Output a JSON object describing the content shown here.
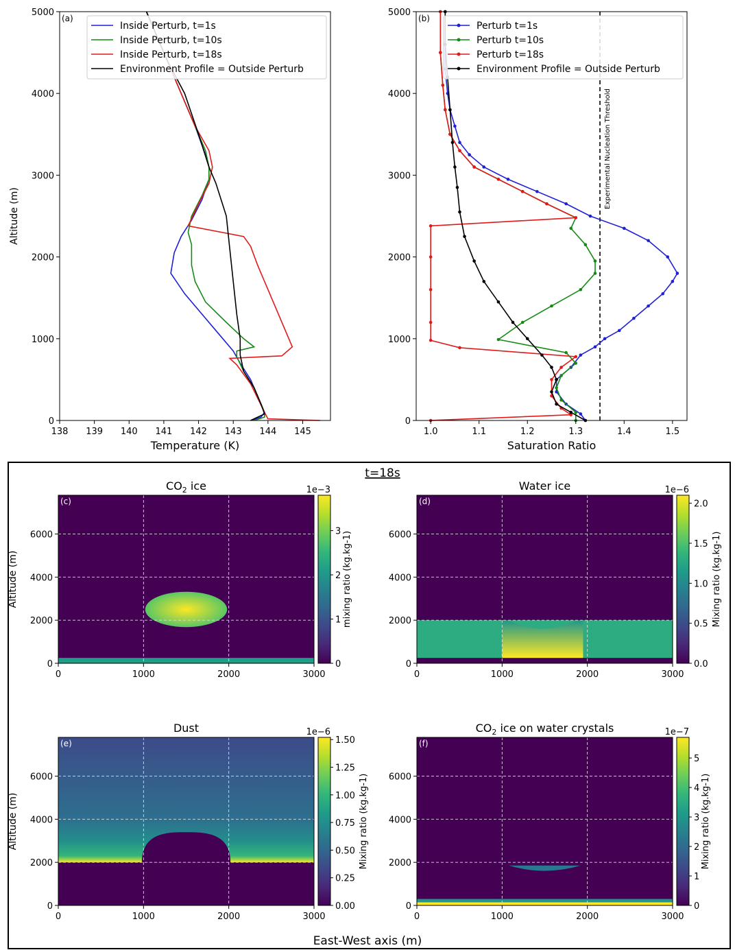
{
  "chart_data": [
    {
      "id": "a",
      "type": "line",
      "panel_label": "(a)",
      "xlabel": "Temperature (K)",
      "ylabel": "Altitude (m)",
      "xlim": [
        138,
        145.8
      ],
      "ylim": [
        0,
        5000
      ],
      "xticks": [
        "138",
        "139",
        "140",
        "141",
        "142",
        "143",
        "144",
        "145"
      ],
      "yticks": [
        "0",
        "1000",
        "2000",
        "3000",
        "4000",
        "5000"
      ],
      "legend": "top-right",
      "series": [
        {
          "name": "Inside Perturb, t=1s",
          "color": "#1f1fd6",
          "points": [
            [
              143.5,
              0
            ],
            [
              143.8,
              40
            ],
            [
              143.9,
              100
            ],
            [
              143.7,
              300
            ],
            [
              143.5,
              500
            ],
            [
              143.2,
              700
            ],
            [
              143.0,
              850
            ],
            [
              142.6,
              1050
            ],
            [
              142.1,
              1300
            ],
            [
              141.6,
              1550
            ],
            [
              141.2,
              1800
            ],
            [
              141.3,
              2050
            ],
            [
              141.5,
              2250
            ],
            [
              141.8,
              2450
            ],
            [
              142.1,
              2700
            ],
            [
              142.3,
              2950
            ],
            [
              142.3,
              3100
            ],
            [
              142.2,
              3250
            ],
            [
              141.9,
              3600
            ],
            [
              141.5,
              4000
            ],
            [
              141.1,
              4400
            ],
            [
              140.7,
              4800
            ],
            [
              140.5,
              5000
            ]
          ]
        },
        {
          "name": "Inside Perturb, t=10s",
          "color": "#148a14",
          "points": [
            [
              143.6,
              0
            ],
            [
              143.9,
              40
            ],
            [
              143.9,
              100
            ],
            [
              143.6,
              400
            ],
            [
              143.3,
              600
            ],
            [
              143.1,
              780
            ],
            [
              143.1,
              850
            ],
            [
              143.6,
              900
            ],
            [
              143.3,
              1000
            ],
            [
              142.8,
              1200
            ],
            [
              142.2,
              1450
            ],
            [
              141.9,
              1700
            ],
            [
              141.8,
              1900
            ],
            [
              141.8,
              2150
            ],
            [
              141.7,
              2300
            ],
            [
              141.8,
              2500
            ],
            [
              142.1,
              2750
            ],
            [
              142.3,
              2950
            ],
            [
              142.3,
              3100
            ],
            [
              142.2,
              3300
            ],
            [
              141.9,
              3600
            ],
            [
              141.5,
              4000
            ],
            [
              141.1,
              4400
            ],
            [
              140.7,
              4800
            ],
            [
              140.5,
              5000
            ]
          ]
        },
        {
          "name": "Inside Perturb, t=18s",
          "color": "#e01a1a",
          "points": [
            [
              145.5,
              0
            ],
            [
              144.0,
              20
            ],
            [
              143.9,
              100
            ],
            [
              143.5,
              450
            ],
            [
              143.1,
              680
            ],
            [
              142.9,
              760
            ],
            [
              144.4,
              790
            ],
            [
              144.7,
              900
            ],
            [
              144.2,
              1400
            ],
            [
              143.7,
              1900
            ],
            [
              143.5,
              2130
            ],
            [
              143.3,
              2250
            ],
            [
              141.7,
              2380
            ],
            [
              142.0,
              2650
            ],
            [
              142.3,
              2900
            ],
            [
              142.4,
              3100
            ],
            [
              142.3,
              3300
            ],
            [
              141.9,
              3600
            ],
            [
              141.5,
              4000
            ],
            [
              141.1,
              4400
            ],
            [
              140.7,
              4800
            ],
            [
              140.5,
              5000
            ]
          ]
        },
        {
          "name": "Environment Profile = Outside Perturb",
          "color": "#000000",
          "points": [
            [
              143.5,
              0
            ],
            [
              143.9,
              80
            ],
            [
              143.8,
              200
            ],
            [
              143.6,
              400
            ],
            [
              143.3,
              600
            ],
            [
              143.2,
              800
            ],
            [
              143.2,
              1000
            ],
            [
              143.1,
              1300
            ],
            [
              143.0,
              1700
            ],
            [
              142.9,
              2100
            ],
            [
              142.8,
              2500
            ],
            [
              142.5,
              2900
            ],
            [
              142.3,
              3100
            ],
            [
              142.0,
              3500
            ],
            [
              141.6,
              4000
            ],
            [
              141.1,
              4400
            ],
            [
              140.7,
              4800
            ],
            [
              140.5,
              5000
            ]
          ]
        }
      ]
    },
    {
      "id": "b",
      "type": "line",
      "panel_label": "(b)",
      "xlabel": "Saturation Ratio",
      "ylabel": "",
      "xlim": [
        0.97,
        1.53
      ],
      "ylim": [
        0,
        5000
      ],
      "xticks": [
        "1.0",
        "1.1",
        "1.2",
        "1.3",
        "1.4",
        "1.5"
      ],
      "yticks": [
        "0",
        "1000",
        "2000",
        "3000",
        "4000",
        "5000"
      ],
      "legend": "top-right",
      "threshold": {
        "x": 1.35,
        "label": "Experimental Nucleation Threshold"
      },
      "series": [
        {
          "name": "Perturb t=1s",
          "color": "#1f1fd6",
          "points": [
            [
              1.32,
              0
            ],
            [
              1.31,
              80
            ],
            [
              1.28,
              200
            ],
            [
              1.26,
              350
            ],
            [
              1.26,
              500
            ],
            [
              1.29,
              650
            ],
            [
              1.31,
              800
            ],
            [
              1.34,
              900
            ],
            [
              1.36,
              1000
            ],
            [
              1.39,
              1100
            ],
            [
              1.42,
              1250
            ],
            [
              1.45,
              1400
            ],
            [
              1.48,
              1550
            ],
            [
              1.5,
              1700
            ],
            [
              1.51,
              1800
            ],
            [
              1.49,
              2000
            ],
            [
              1.45,
              2200
            ],
            [
              1.4,
              2350
            ],
            [
              1.33,
              2500
            ],
            [
              1.28,
              2650
            ],
            [
              1.22,
              2800
            ],
            [
              1.16,
              2950
            ],
            [
              1.11,
              3100
            ],
            [
              1.08,
              3250
            ],
            [
              1.06,
              3400
            ],
            [
              1.05,
              3600
            ],
            [
              1.04,
              3800
            ],
            [
              1.035,
              4000
            ],
            [
              1.03,
              4300
            ],
            [
              1.03,
              4600
            ],
            [
              1.03,
              5000
            ]
          ]
        },
        {
          "name": "Perturb t=10s",
          "color": "#148a14",
          "points": [
            [
              1.3,
              0
            ],
            [
              1.3,
              100
            ],
            [
              1.27,
              250
            ],
            [
              1.26,
              400
            ],
            [
              1.27,
              550
            ],
            [
              1.3,
              700
            ],
            [
              1.28,
              830
            ],
            [
              1.14,
              990
            ],
            [
              1.19,
              1200
            ],
            [
              1.25,
              1400
            ],
            [
              1.31,
              1600
            ],
            [
              1.34,
              1800
            ],
            [
              1.34,
              1950
            ],
            [
              1.32,
              2150
            ],
            [
              1.29,
              2350
            ],
            [
              1.3,
              2480
            ],
            [
              1.24,
              2650
            ],
            [
              1.19,
              2800
            ],
            [
              1.14,
              2950
            ],
            [
              1.09,
              3100
            ],
            [
              1.06,
              3300
            ],
            [
              1.04,
              3500
            ],
            [
              1.03,
              3800
            ],
            [
              1.025,
              4100
            ],
            [
              1.02,
              4500
            ],
            [
              1.02,
              5000
            ]
          ]
        },
        {
          "name": "Perturb t=18s",
          "color": "#e01a1a",
          "points": [
            [
              1.0,
              0
            ],
            [
              1.29,
              70
            ],
            [
              1.27,
              150
            ],
            [
              1.25,
              300
            ],
            [
              1.25,
              500
            ],
            [
              1.27,
              650
            ],
            [
              1.3,
              780
            ],
            [
              1.06,
              890
            ],
            [
              1.0,
              980
            ],
            [
              1.0,
              1200
            ],
            [
              1.0,
              1600
            ],
            [
              1.0,
              2000
            ],
            [
              1.0,
              2380
            ],
            [
              1.3,
              2480
            ],
            [
              1.24,
              2650
            ],
            [
              1.19,
              2800
            ],
            [
              1.14,
              2950
            ],
            [
              1.09,
              3100
            ],
            [
              1.06,
              3300
            ],
            [
              1.04,
              3500
            ],
            [
              1.03,
              3800
            ],
            [
              1.025,
              4100
            ],
            [
              1.02,
              4500
            ],
            [
              1.02,
              5000
            ]
          ]
        },
        {
          "name": "Environment Profile = Outside Perturb",
          "color": "#000000",
          "points": [
            [
              1.32,
              0
            ],
            [
              1.29,
              100
            ],
            [
              1.26,
              200
            ],
            [
              1.25,
              350
            ],
            [
              1.26,
              500
            ],
            [
              1.25,
              650
            ],
            [
              1.23,
              800
            ],
            [
              1.2,
              1000
            ],
            [
              1.17,
              1200
            ],
            [
              1.14,
              1450
            ],
            [
              1.11,
              1700
            ],
            [
              1.09,
              1950
            ],
            [
              1.07,
              2250
            ],
            [
              1.06,
              2550
            ],
            [
              1.055,
              2850
            ],
            [
              1.05,
              3100
            ],
            [
              1.045,
              3400
            ],
            [
              1.04,
              3800
            ],
            [
              1.035,
              4200
            ],
            [
              1.03,
              4600
            ],
            [
              1.03,
              5000
            ]
          ]
        }
      ]
    },
    {
      "id": "c",
      "type": "heatmap",
      "panel_label": "(c)",
      "title_main": "CO",
      "title_sub": "2",
      "title_rest": " ice",
      "xlabel": "",
      "ylabel": "Altitude (m)",
      "xlim": [
        0,
        3000
      ],
      "ylim": [
        0,
        7800
      ],
      "xticks": [
        "0",
        "1000",
        "2000",
        "3000"
      ],
      "yticks": [
        "0",
        "2000",
        "4000",
        "6000"
      ],
      "colorbar": {
        "label": "mixing ratio (kg.kg-1)",
        "exponent": "1e−3",
        "ticks": [
          "0",
          "1",
          "2",
          "3"
        ],
        "max": 3.8
      },
      "features": [
        {
          "shape": "ellipse",
          "cx": 1500,
          "cy": 2500,
          "rx": 480,
          "ry": 820,
          "value": 3.3,
          "peak": 3.8
        },
        {
          "shape": "band",
          "y0": 0,
          "y1": 250,
          "value": 2.1
        }
      ]
    },
    {
      "id": "d",
      "type": "heatmap",
      "panel_label": "(d)",
      "title_main": "Water ice",
      "xlabel": "",
      "ylabel": "",
      "xlim": [
        0,
        3000
      ],
      "ylim": [
        0,
        7800
      ],
      "xticks": [
        "0",
        "1000",
        "2000",
        "3000"
      ],
      "yticks": [
        "0",
        "2000",
        "4000",
        "6000"
      ],
      "colorbar": {
        "label": "Mixing ratio (kg.kg-1)",
        "exponent": "1e−6",
        "ticks": [
          "0.0",
          "0.5",
          "1.0",
          "1.5",
          "2.0"
        ],
        "max": 2.1
      },
      "features": [
        {
          "shape": "band",
          "y0": 250,
          "y1": 2000,
          "value": 1.3
        },
        {
          "shape": "cap",
          "x0": 1000,
          "x1": 1950,
          "y0": 250,
          "ytop": 1600,
          "value": 1.9
        }
      ]
    },
    {
      "id": "e",
      "type": "heatmap",
      "panel_label": "(e)",
      "title_main": "Dust",
      "xlabel": "",
      "ylabel": "Altitude (m)",
      "xlim": [
        0,
        3000
      ],
      "ylim": [
        0,
        7800
      ],
      "xticks": [
        "0",
        "1000",
        "2000",
        "3000"
      ],
      "yticks": [
        "0",
        "2000",
        "4000",
        "6000"
      ],
      "colorbar": {
        "label": "Mixing ratio (kg.kg-1)",
        "exponent": "1e−6",
        "ticks": [
          "0.00",
          "0.25",
          "0.50",
          "0.75",
          "1.00",
          "1.25",
          "1.50"
        ],
        "max": 1.52
      },
      "features": [
        {
          "shape": "profile",
          "y0": 2000,
          "values": [
            [
              2000,
              1.5
            ],
            [
              2300,
              1.0
            ],
            [
              3000,
              0.75
            ],
            [
              4000,
              0.55
            ],
            [
              7800,
              0.35
            ]
          ]
        },
        {
          "shape": "dome",
          "cx": 1500,
          "rx": 520,
          "ytop": 3400,
          "value": 0.0
        }
      ]
    },
    {
      "id": "f",
      "type": "heatmap",
      "panel_label": "(f)",
      "title_main": "CO",
      "title_sub": "2",
      "title_rest": " ice on water crystals",
      "xlabel": "",
      "ylabel": "",
      "xlim": [
        0,
        3000
      ],
      "ylim": [
        0,
        7800
      ],
      "xticks": [
        "0",
        "1000",
        "2000",
        "3000"
      ],
      "yticks": [
        "0",
        "2000",
        "4000",
        "6000"
      ],
      "colorbar": {
        "label": "Mixing ratio (kg.kg-1)",
        "exponent": "1e−7",
        "ticks": [
          "0",
          "1",
          "2",
          "3",
          "4",
          "5"
        ],
        "max": 5.7
      },
      "features": [
        {
          "shape": "lens",
          "cx": 1500,
          "rx": 420,
          "y0": 1500,
          "y1": 1850,
          "value": 2.3
        },
        {
          "shape": "band",
          "y0": 0,
          "y1": 150,
          "value": 5.7
        },
        {
          "shape": "band",
          "y0": 150,
          "y1": 300,
          "value": 3.0
        }
      ]
    }
  ],
  "frame": {
    "title": "t=18s",
    "xlabel": "East-West axis (m)"
  }
}
